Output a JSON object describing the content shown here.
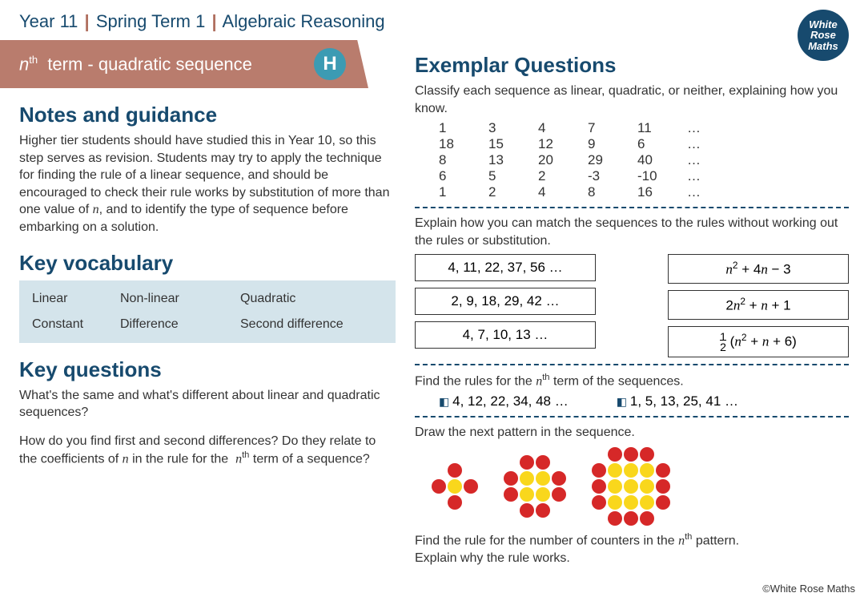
{
  "header": {
    "year": "Year 11",
    "term": "Spring Term 1",
    "topic": "Algebraic Reasoning",
    "logo_lines": [
      "White",
      "Rose",
      "Maths"
    ]
  },
  "ribbon": {
    "title_html": "<span class='nth'>n</span><sup>th</sup>&nbsp; term - quadratic sequence",
    "badge": "H"
  },
  "left": {
    "notes_heading": "Notes and guidance",
    "notes_text": "Higher tier students should have studied this in Year 10, so this step serves as revision. Students may try to apply the technique for finding the rule of a linear sequence, and should be encouraged to check their rule works by substitution of more than one value of <span class='ital'>n</span>, and to  identify the type of sequence before embarking on a solution.",
    "vocab_heading": "Key vocabulary",
    "vocab_rows": [
      [
        "Linear",
        "Non-linear",
        "Quadratic"
      ],
      [
        "Constant",
        "Difference",
        "Second difference"
      ]
    ],
    "questions_heading": "Key questions",
    "q1": "What's the same and what's different about linear and quadratic sequences?",
    "q2": "How do you find first and second differences? Do they relate to the coefficients of <span class='ital'>n</span> in the rule for the &nbsp;<span class='ital'>n</span><sup>th</sup> term of a sequence?"
  },
  "right": {
    "heading": "Exemplar Questions",
    "classify_intro": "Classify each sequence as linear, quadratic, or neither, explaining how you know.",
    "seq_rows": [
      [
        "1",
        "3",
        "4",
        "7",
        "11",
        "…"
      ],
      [
        "18",
        "15",
        "12",
        "9",
        "6",
        "…"
      ],
      [
        "8",
        "13",
        "20",
        "29",
        "40",
        "…"
      ],
      [
        "6",
        "5",
        "2",
        "-3",
        "-10",
        "…"
      ],
      [
        "1",
        "2",
        "4",
        "8",
        "16",
        "…"
      ]
    ],
    "match_intro": "Explain how you can match the sequences to the rules without working out the rules or substitution.",
    "match_left": [
      "4, 11, 22, 37, 56 …",
      "2, 9, 18, 29, 42 …",
      "4, 7, 10, 13 …"
    ],
    "match_right_html": [
      "<span class='ital'>n</span><sup>2</sup> + 4<span class='ital'>n</span> − 3",
      "2<span class='ital'>n</span><sup>2</sup> + <span class='ital'>n</span> + 1",
      "<span style='display:inline-block;vertical-align:middle;text-align:center;line-height:0.9;font-size:14px;'><span>1</span><br><span style='border-top:1px solid #000;'>2</span></span> (<span class='ital'>n</span><sup>2</sup> + <span class='ital'>n</span> + 6)"
    ],
    "find_rules": "Find the rules for the <span class='ital'>n</span><sup>th</sup> term of the sequences.",
    "find_items": [
      "4, 12, 22, 34, 48 …",
      "1, 5, 13, 25, 41 …"
    ],
    "draw_next": "Draw the next pattern in the sequence.",
    "find_rule_counters": "Find the rule for the number of counters in the <span class='ital'>n</span><sup>th</sup> pattern.",
    "explain": "Explain why the rule works."
  },
  "patterns": {
    "colors": {
      "red": "#d62828",
      "yellow": "#f9d71c"
    },
    "dot_r": 9,
    "spacing": 20
  },
  "footer": "©White Rose Maths"
}
